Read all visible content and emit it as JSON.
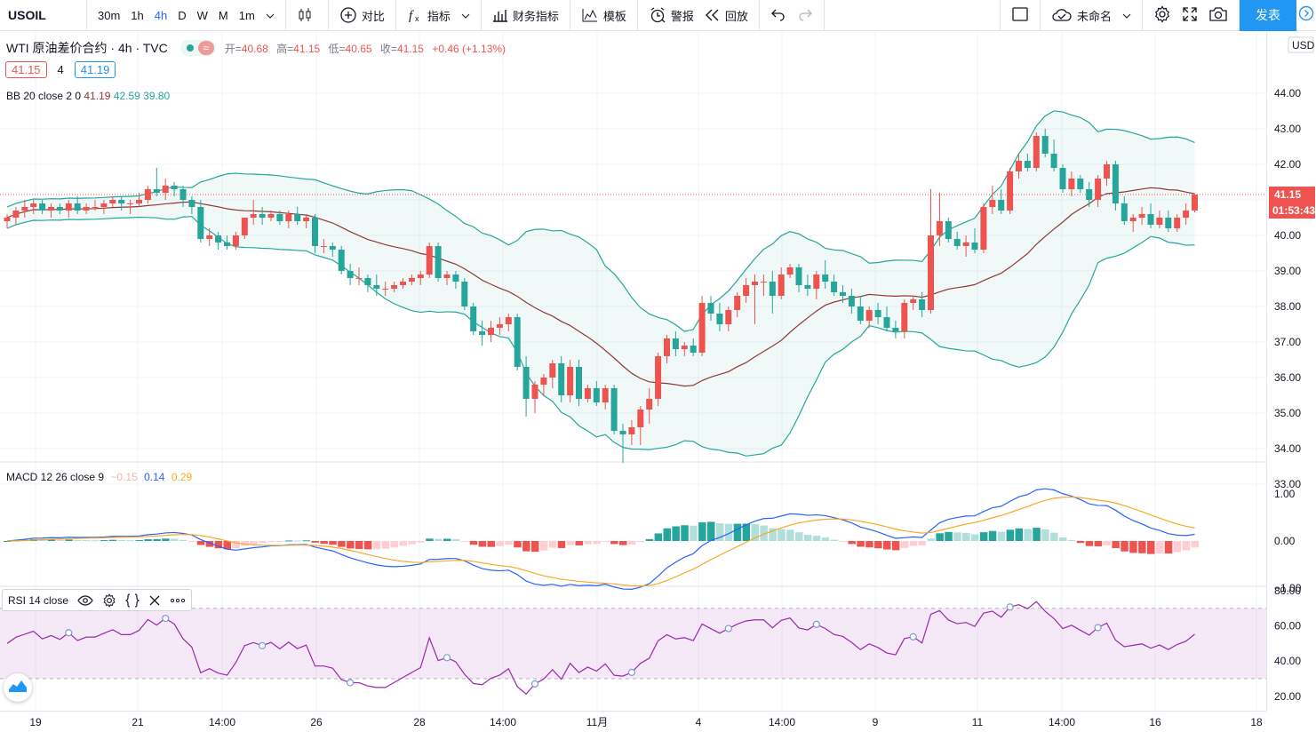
{
  "toolbar": {
    "symbol": "USOIL",
    "intervals": [
      {
        "label": "30m",
        "active": false
      },
      {
        "label": "1h",
        "active": false
      },
      {
        "label": "4h",
        "active": true
      },
      {
        "label": "D",
        "active": false
      },
      {
        "label": "W",
        "active": false
      },
      {
        "label": "M",
        "active": false
      },
      {
        "label": "1m",
        "active": false
      }
    ],
    "compare": "对比",
    "indicators": "指标",
    "financials": "财务指标",
    "templates": "模板",
    "alert": "警报",
    "replay": "回放",
    "layout_name": "未命名",
    "publish": "发表"
  },
  "legend": {
    "title": "WTI 原油差价合约 · 4h · TVC",
    "toggle_glyph": "≈",
    "ohlc": [
      {
        "label": "开=",
        "value": "40.68"
      },
      {
        "label": "高=",
        "value": "41.15"
      },
      {
        "label": "低=",
        "value": "40.65"
      },
      {
        "label": "收=",
        "value": "41.15"
      }
    ],
    "change": "+0.46 (+1.13%)",
    "sell": "41.15",
    "spread": "4",
    "buy": "41.19",
    "bb": {
      "name": "BB 20 close 2 0",
      "v1": "41.19",
      "v2": "42.59",
      "v3": "39.80"
    },
    "macd": {
      "name": "MACD 12 26 close 9",
      "hist": "−0.15",
      "macd": "0.14",
      "signal": "0.29"
    },
    "rsi": {
      "name": "RSI 14 close"
    }
  },
  "price_axis": {
    "currency": "USD",
    "ticks": [
      "44.00",
      "43.00",
      "42.00",
      "41.00",
      "40.00",
      "39.00",
      "38.00",
      "37.00",
      "36.00",
      "35.00",
      "34.00",
      "33.00"
    ],
    "last_price": "41.15",
    "countdown": "01:53:43",
    "macd_ticks": [
      "1.00",
      "0.00",
      "−1.00"
    ],
    "rsi_ticks": [
      "80.00",
      "60.00",
      "40.00",
      "20.00"
    ]
  },
  "time_axis": {
    "labels": [
      "19",
      "21",
      "14:00",
      "26",
      "28",
      "14:00",
      "11月",
      "4",
      "14:00",
      "9",
      "11",
      "14:00",
      "16",
      "18"
    ]
  },
  "colors": {
    "up": "#ef5350",
    "down": "#26a69a",
    "bb_basis": "#8d3a36",
    "bb_band": "#26a69a",
    "macd": "#2962ff",
    "signal": "#f9a825",
    "rsi": "#9c27b0"
  },
  "chart_data": {
    "type": "candlestick",
    "ylim": [
      33,
      44
    ],
    "candles": [
      [
        40.4,
        40.6,
        40.2,
        40.5
      ],
      [
        40.5,
        40.8,
        40.3,
        40.7
      ],
      [
        40.7,
        41.0,
        40.5,
        40.8
      ],
      [
        40.8,
        41.0,
        40.6,
        40.9
      ],
      [
        40.9,
        41.0,
        40.6,
        40.7
      ],
      [
        40.7,
        40.9,
        40.5,
        40.8
      ],
      [
        40.8,
        40.9,
        40.6,
        40.7
      ],
      [
        40.7,
        41.0,
        40.5,
        40.9
      ],
      [
        40.9,
        41.1,
        40.6,
        40.7
      ],
      [
        40.7,
        40.9,
        40.6,
        40.8
      ],
      [
        40.8,
        41.0,
        40.7,
        40.8
      ],
      [
        40.8,
        41.0,
        40.6,
        40.9
      ],
      [
        40.9,
        41.1,
        40.8,
        41.0
      ],
      [
        41.0,
        41.1,
        40.7,
        40.9
      ],
      [
        40.9,
        41.0,
        40.6,
        40.9
      ],
      [
        40.9,
        41.2,
        40.8,
        41.0
      ],
      [
        41.0,
        41.4,
        40.9,
        41.3
      ],
      [
        41.3,
        41.9,
        41.1,
        41.2
      ],
      [
        41.2,
        41.6,
        41.0,
        41.4
      ],
      [
        41.4,
        41.5,
        41.1,
        41.3
      ],
      [
        41.3,
        41.4,
        40.8,
        41.0
      ],
      [
        41.0,
        41.1,
        40.6,
        40.8
      ],
      [
        40.8,
        41.0,
        39.8,
        39.9
      ],
      [
        39.9,
        40.2,
        39.7,
        40.0
      ],
      [
        40.0,
        40.1,
        39.6,
        39.8
      ],
      [
        39.8,
        40.0,
        39.6,
        39.7
      ],
      [
        39.7,
        40.1,
        39.6,
        40.0
      ],
      [
        40.0,
        40.5,
        39.9,
        40.5
      ],
      [
        40.5,
        41.0,
        40.3,
        40.6
      ],
      [
        40.6,
        40.8,
        40.3,
        40.5
      ],
      [
        40.5,
        40.7,
        40.4,
        40.6
      ],
      [
        40.6,
        40.7,
        40.3,
        40.4
      ],
      [
        40.4,
        40.7,
        40.2,
        40.6
      ],
      [
        40.6,
        40.8,
        40.3,
        40.4
      ],
      [
        40.4,
        40.6,
        40.2,
        40.5
      ],
      [
        40.5,
        40.6,
        39.5,
        39.7
      ],
      [
        39.7,
        39.9,
        39.5,
        39.7
      ],
      [
        39.7,
        39.8,
        39.4,
        39.6
      ],
      [
        39.6,
        39.7,
        38.9,
        39.0
      ],
      [
        39.0,
        39.2,
        38.6,
        38.8
      ],
      [
        38.8,
        39.1,
        38.6,
        38.8
      ],
      [
        38.8,
        38.9,
        38.4,
        38.6
      ],
      [
        38.6,
        38.9,
        38.3,
        38.5
      ],
      [
        38.5,
        38.7,
        38.3,
        38.5
      ],
      [
        38.5,
        38.7,
        38.4,
        38.6
      ],
      [
        38.6,
        38.8,
        38.5,
        38.7
      ],
      [
        38.7,
        38.9,
        38.6,
        38.8
      ],
      [
        38.8,
        39.0,
        38.6,
        38.9
      ],
      [
        38.9,
        39.8,
        38.8,
        39.7
      ],
      [
        39.7,
        39.8,
        38.7,
        38.8
      ],
      [
        38.8,
        39.0,
        38.6,
        38.9
      ],
      [
        38.9,
        39.0,
        38.5,
        38.7
      ],
      [
        38.7,
        38.8,
        37.9,
        38.0
      ],
      [
        38.0,
        38.1,
        37.2,
        37.3
      ],
      [
        37.3,
        37.6,
        36.9,
        37.2
      ],
      [
        37.2,
        37.6,
        37.0,
        37.4
      ],
      [
        37.4,
        37.7,
        37.2,
        37.5
      ],
      [
        37.5,
        37.8,
        37.3,
        37.7
      ],
      [
        37.7,
        37.8,
        36.2,
        36.3
      ],
      [
        36.3,
        36.6,
        34.9,
        35.4
      ],
      [
        35.4,
        35.9,
        35.0,
        35.8
      ],
      [
        35.8,
        36.1,
        35.5,
        36.0
      ],
      [
        36.0,
        36.5,
        35.7,
        36.4
      ],
      [
        36.4,
        36.6,
        35.3,
        35.5
      ],
      [
        35.5,
        36.5,
        35.3,
        36.3
      ],
      [
        36.3,
        36.5,
        35.2,
        35.4
      ],
      [
        35.4,
        35.8,
        35.3,
        35.7
      ],
      [
        35.7,
        35.9,
        35.2,
        35.3
      ],
      [
        35.3,
        35.8,
        35.1,
        35.7
      ],
      [
        35.7,
        35.8,
        34.4,
        34.5
      ],
      [
        34.5,
        34.7,
        33.6,
        34.4
      ],
      [
        34.4,
        34.8,
        34.1,
        34.6
      ],
      [
        34.6,
        35.2,
        34.1,
        35.1
      ],
      [
        35.1,
        35.7,
        34.7,
        35.4
      ],
      [
        35.4,
        36.7,
        35.2,
        36.6
      ],
      [
        36.6,
        37.2,
        36.4,
        37.1
      ],
      [
        37.1,
        37.3,
        36.6,
        36.8
      ],
      [
        36.8,
        37.0,
        36.6,
        36.9
      ],
      [
        36.9,
        37.1,
        36.6,
        36.7
      ],
      [
        36.7,
        38.3,
        36.6,
        38.1
      ],
      [
        38.1,
        38.3,
        37.6,
        37.8
      ],
      [
        37.8,
        38.1,
        37.3,
        37.5
      ],
      [
        37.5,
        38.0,
        37.3,
        37.9
      ],
      [
        37.9,
        38.4,
        37.7,
        38.3
      ],
      [
        38.3,
        38.8,
        38.1,
        38.6
      ],
      [
        38.6,
        38.9,
        37.5,
        38.7
      ],
      [
        38.7,
        38.9,
        38.3,
        38.7
      ],
      [
        38.7,
        39.0,
        37.8,
        38.3
      ],
      [
        38.3,
        39.1,
        38.2,
        38.9
      ],
      [
        38.9,
        39.2,
        38.8,
        39.1
      ],
      [
        39.1,
        39.2,
        38.4,
        38.6
      ],
      [
        38.6,
        38.9,
        38.3,
        38.5
      ],
      [
        38.5,
        39.0,
        38.2,
        38.9
      ],
      [
        38.9,
        39.3,
        38.5,
        38.7
      ],
      [
        38.7,
        38.9,
        38.3,
        38.4
      ],
      [
        38.4,
        38.6,
        38.1,
        38.3
      ],
      [
        38.3,
        38.5,
        37.8,
        38.0
      ],
      [
        38.0,
        38.3,
        37.5,
        37.6
      ],
      [
        37.6,
        38.0,
        37.4,
        37.9
      ],
      [
        37.9,
        38.1,
        37.5,
        37.7
      ],
      [
        37.7,
        38.0,
        37.3,
        37.4
      ],
      [
        37.4,
        37.6,
        37.1,
        37.3
      ],
      [
        37.3,
        38.2,
        37.1,
        38.1
      ],
      [
        38.1,
        38.3,
        37.9,
        38.2
      ],
      [
        38.2,
        38.4,
        37.7,
        37.9
      ],
      [
        37.9,
        41.3,
        37.8,
        40.0
      ],
      [
        40.0,
        41.2,
        39.7,
        40.4
      ],
      [
        40.4,
        40.5,
        39.8,
        39.9
      ],
      [
        39.9,
        40.1,
        39.6,
        39.7
      ],
      [
        39.7,
        40.0,
        39.4,
        39.8
      ],
      [
        39.8,
        40.2,
        39.5,
        39.6
      ],
      [
        39.6,
        40.9,
        39.5,
        40.8
      ],
      [
        40.8,
        41.4,
        40.6,
        41.0
      ],
      [
        41.0,
        41.3,
        40.6,
        40.7
      ],
      [
        40.7,
        41.9,
        40.6,
        41.8
      ],
      [
        41.8,
        42.3,
        41.6,
        42.1
      ],
      [
        42.1,
        42.3,
        41.8,
        41.9
      ],
      [
        41.9,
        42.9,
        41.8,
        42.8
      ],
      [
        42.8,
        43.0,
        42.2,
        42.3
      ],
      [
        42.3,
        42.7,
        41.8,
        41.9
      ],
      [
        41.9,
        42.0,
        41.2,
        41.3
      ],
      [
        41.3,
        41.8,
        41.1,
        41.6
      ],
      [
        41.6,
        41.7,
        41.2,
        41.3
      ],
      [
        41.3,
        41.5,
        40.8,
        41.0
      ],
      [
        41.0,
        41.7,
        40.8,
        41.6
      ],
      [
        41.6,
        42.1,
        41.4,
        42.0
      ],
      [
        42.0,
        42.1,
        40.7,
        40.9
      ],
      [
        40.9,
        41.1,
        40.3,
        40.4
      ],
      [
        40.4,
        40.6,
        40.1,
        40.5
      ],
      [
        40.5,
        40.8,
        40.3,
        40.6
      ],
      [
        40.6,
        40.9,
        40.2,
        40.3
      ],
      [
        40.3,
        40.7,
        40.2,
        40.5
      ],
      [
        40.5,
        40.7,
        40.1,
        40.2
      ],
      [
        40.2,
        40.6,
        40.1,
        40.5
      ],
      [
        40.5,
        40.9,
        40.3,
        40.7
      ],
      [
        40.7,
        41.15,
        40.65,
        41.15
      ]
    ],
    "macd_range": [
      -1.1,
      1.1
    ],
    "rsi_range": [
      18,
      82
    ],
    "rsi_bands": [
      70,
      30
    ]
  }
}
